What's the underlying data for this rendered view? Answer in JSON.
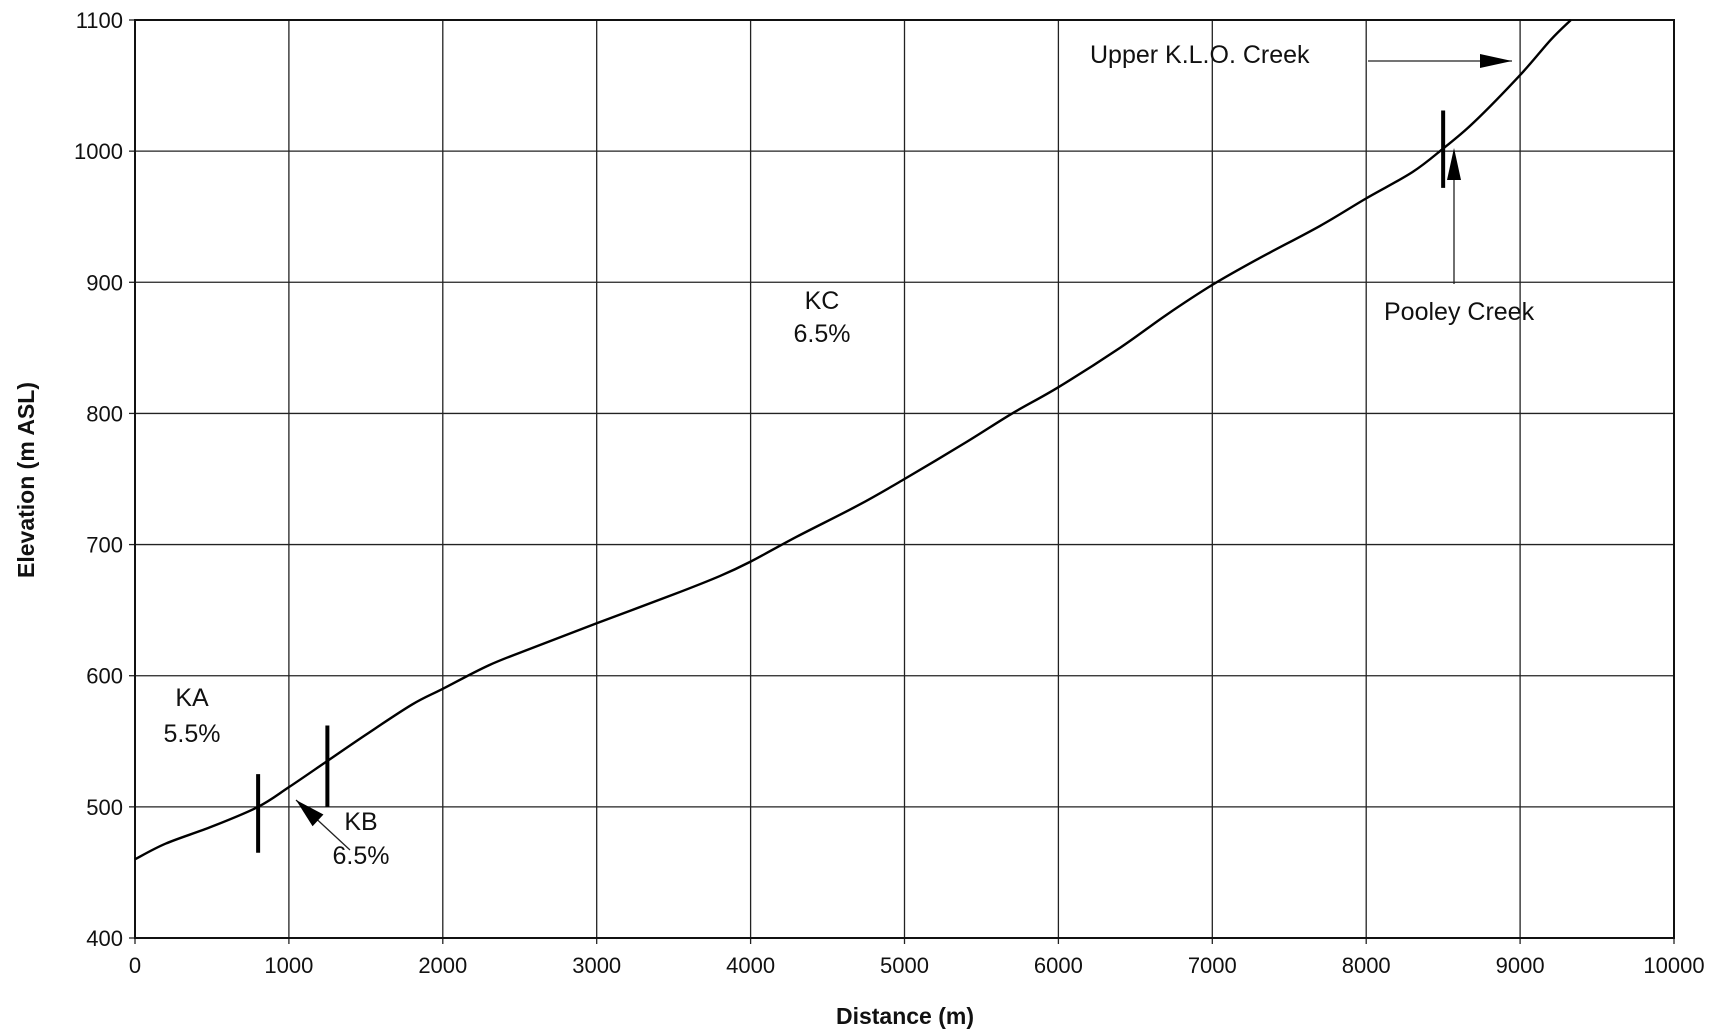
{
  "chart_data": {
    "type": "line",
    "title": "",
    "xlabel": "Distance (m)",
    "ylabel": "Elevation (m ASL)",
    "xlim": [
      0,
      10000
    ],
    "ylim": [
      400,
      1100
    ],
    "x_ticks": [
      0,
      1000,
      2000,
      3000,
      4000,
      5000,
      6000,
      7000,
      8000,
      9000,
      10000
    ],
    "y_ticks": [
      400,
      500,
      600,
      700,
      800,
      900,
      1000,
      1100
    ],
    "grid": true,
    "legend": "none",
    "series": [
      {
        "x": [
          0,
          200,
          500,
          800,
          1000,
          1250,
          1500,
          1800,
          2000,
          2300,
          2600,
          3000,
          3500,
          3800,
          4000,
          4300,
          4700,
          5000,
          5400,
          5700,
          6000,
          6400,
          6700,
          7000,
          7300,
          7700,
          8000,
          8300,
          8500,
          8700,
          9000,
          9200,
          9330
        ],
        "y": [
          460,
          472,
          485,
          500,
          515,
          535,
          555,
          578,
          590,
          608,
          622,
          640,
          662,
          676,
          687,
          706,
          730,
          750,
          778,
          800,
          820,
          850,
          875,
          898,
          918,
          943,
          964,
          984,
          1002,
          1022,
          1058,
          1085,
          1100
        ]
      }
    ],
    "segment_markers": [
      {
        "x": 800,
        "y_bottom": 465,
        "y_top": 525
      },
      {
        "x": 1250,
        "y_bottom": 500,
        "y_top": 562
      },
      {
        "x": 8500,
        "y_bottom": 972,
        "y_top": 1031
      }
    ],
    "annotations": {
      "ka_name": "KA",
      "ka_grade": "5.5%",
      "kb_name": "KB",
      "kb_grade": "6.5%",
      "kc_name": "KC",
      "kc_grade": "6.5%",
      "upper_klo": "Upper K.L.O. Creek",
      "pooley": "Pooley Creek"
    }
  }
}
